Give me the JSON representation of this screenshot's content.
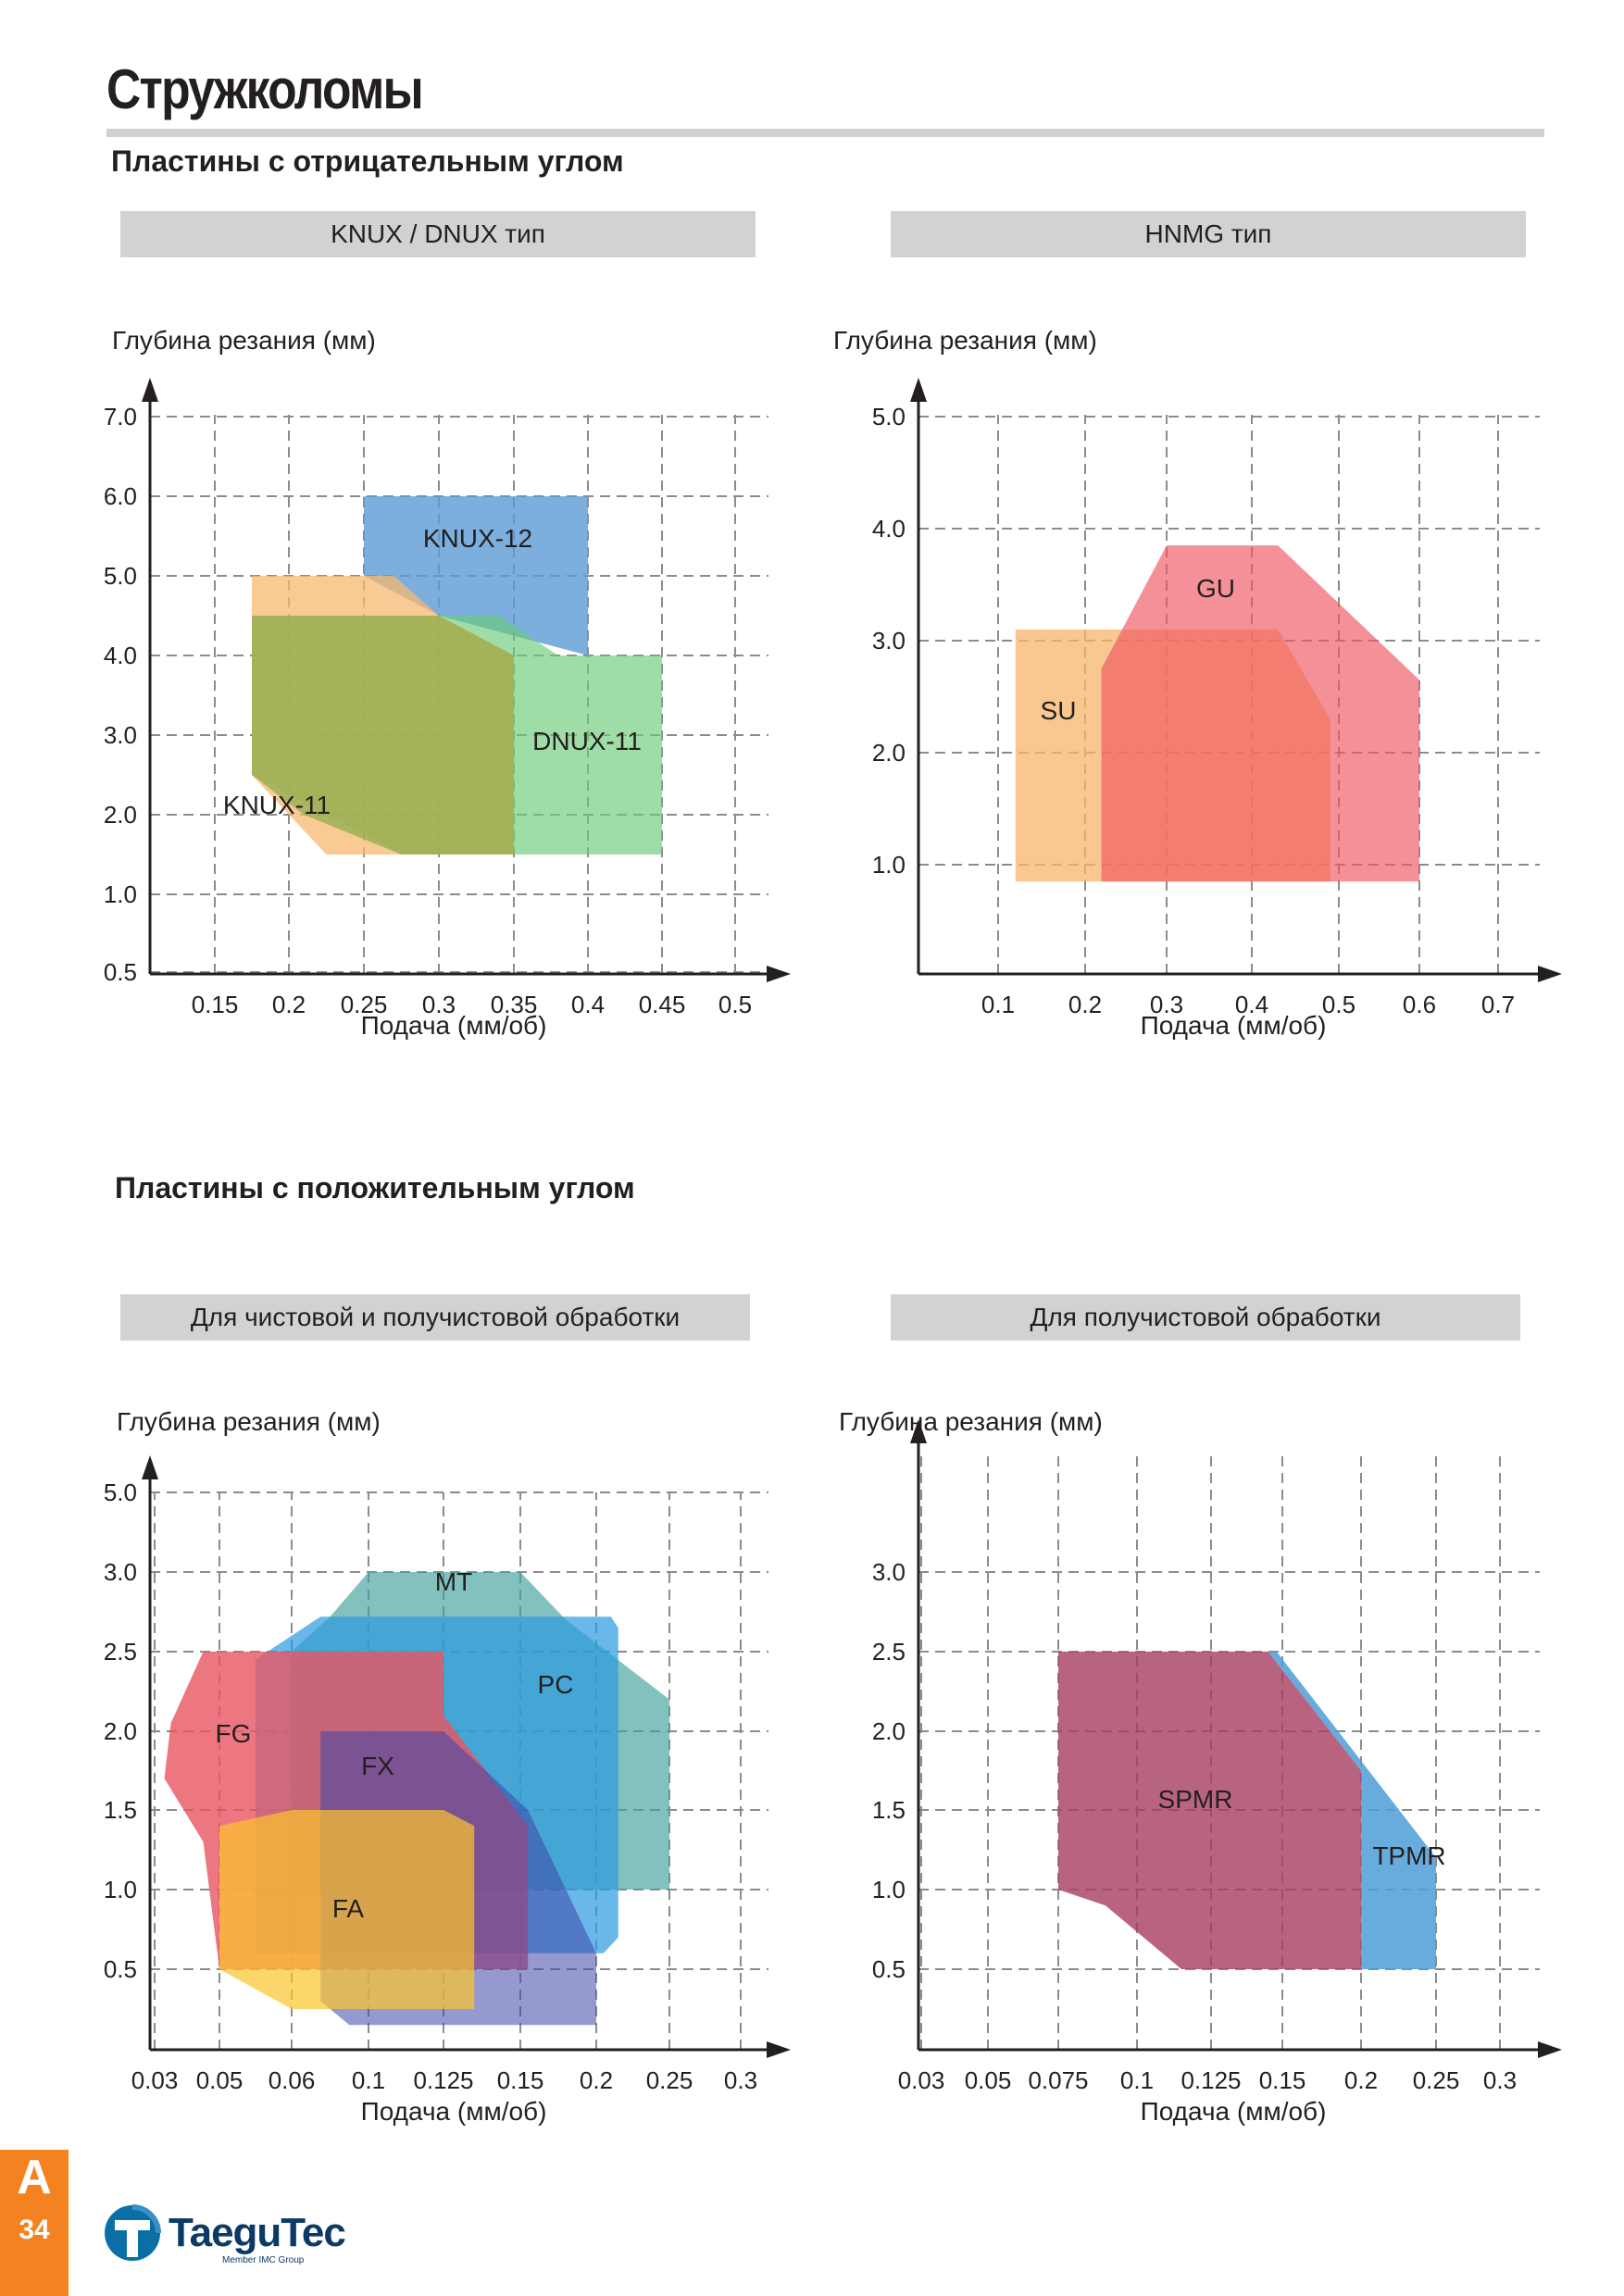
{
  "page": {
    "title": "Стружколомы",
    "section_negative": "Пластины с отрицательным углом",
    "section_positive": "Пластины с положительным углом",
    "section_letter": "A",
    "page_number": "34",
    "brand": "TaeguTec",
    "brand_tagline": "Member IMC Group",
    "accent_color": "#f58220"
  },
  "chart_data": [
    {
      "id": "knux",
      "type": "area",
      "title": "KNUX / DNUX тип",
      "xlabel": "Подача (мм/об)",
      "ylabel": "Глубина резания (мм)",
      "x_ticks": [
        "0.15",
        "0.2",
        "0.25",
        "0.3",
        "0.35",
        "0.4",
        "0.45",
        "0.5"
      ],
      "y_ticks": [
        "0.5",
        "1.0",
        "2.0",
        "3.0",
        "4.0",
        "5.0",
        "6.0",
        "7.0"
      ],
      "grid": true,
      "series": [
        {
          "name": "KNUX-12",
          "color": "#5b9bd5",
          "opacity": 0.8,
          "points": [
            [
              0.25,
              5.0
            ],
            [
              0.25,
              6.0
            ],
            [
              0.4,
              6.0
            ],
            [
              0.4,
              4.0
            ],
            [
              0.3,
              4.5
            ]
          ]
        },
        {
          "name": "DNUX-11",
          "color": "#6ccb7a",
          "opacity": 0.65,
          "points": [
            [
              0.175,
              4.5
            ],
            [
              0.34,
              4.5
            ],
            [
              0.38,
              4.0
            ],
            [
              0.45,
              4.0
            ],
            [
              0.45,
              1.5
            ],
            [
              0.275,
              1.5
            ],
            [
              0.175,
              2.5
            ]
          ]
        },
        {
          "name": "KNUX-11",
          "color": "#f7b870",
          "opacity": 0.75,
          "points": [
            [
              0.175,
              5.0
            ],
            [
              0.27,
              5.0
            ],
            [
              0.3,
              4.5
            ],
            [
              0.35,
              4.0
            ],
            [
              0.35,
              1.5
            ],
            [
              0.225,
              1.5
            ],
            [
              0.175,
              2.5
            ]
          ]
        },
        {
          "name": "",
          "color": "#8aac4a",
          "opacity": 0.7,
          "points": [
            [
              0.175,
              4.5
            ],
            [
              0.3,
              4.5
            ],
            [
              0.35,
              4.0
            ],
            [
              0.35,
              1.5
            ],
            [
              0.275,
              1.5
            ],
            [
              0.21,
              2.0
            ],
            [
              0.175,
              2.5
            ]
          ]
        }
      ]
    },
    {
      "id": "hnmg",
      "type": "area",
      "title": "HNMG тип",
      "xlabel": "Подача (мм/об)",
      "ylabel": "Глубина резания (мм)",
      "x_ticks": [
        "0.1",
        "0.2",
        "0.3",
        "0.4",
        "0.5",
        "0.6",
        "0.7"
      ],
      "y_ticks": [
        "1.0",
        "2.0",
        "3.0",
        "4.0",
        "5.0"
      ],
      "grid": true,
      "series": [
        {
          "name": "SU",
          "color": "#f6b56b",
          "opacity": 0.75,
          "points": [
            [
              0.12,
              0.85
            ],
            [
              0.12,
              3.1
            ],
            [
              0.43,
              3.1
            ],
            [
              0.49,
              2.3
            ],
            [
              0.49,
              0.85
            ]
          ]
        },
        {
          "name": "GU",
          "color": "#ee5560",
          "opacity": 0.65,
          "points": [
            [
              0.22,
              0.85
            ],
            [
              0.22,
              2.75
            ],
            [
              0.3,
              3.85
            ],
            [
              0.43,
              3.85
            ],
            [
              0.6,
              2.65
            ],
            [
              0.6,
              0.85
            ]
          ]
        }
      ]
    },
    {
      "id": "finishing",
      "type": "area",
      "title": "Для чистовой и получистовой обработки",
      "xlabel": "Подача (мм/об)",
      "ylabel": "Глубина резания (мм)",
      "x_ticks": [
        "0.03",
        "0.05",
        "0.06",
        "0.1",
        "0.125",
        "0.15",
        "0.2",
        "0.25",
        "0.3"
      ],
      "y_ticks": [
        "0.5",
        "1.0",
        "1.5",
        "2.0",
        "2.5",
        "3.0",
        "5.0"
      ],
      "grid": true,
      "series": [
        {
          "name": "MT",
          "color": "#3fa09b",
          "opacity": 0.65,
          "points": [
            [
              0.06,
              1.0
            ],
            [
              0.06,
              2.5
            ],
            [
              0.08,
              2.72
            ],
            [
              0.1,
              3.0
            ],
            [
              0.15,
              3.0
            ],
            [
              0.18,
              2.7
            ],
            [
              0.25,
              2.2
            ],
            [
              0.25,
              1.0
            ]
          ]
        },
        {
          "name": "PC",
          "color": "#2b9ae0",
          "opacity": 0.7,
          "points": [
            [
              0.055,
              0.6
            ],
            [
              0.055,
              2.45
            ],
            [
              0.075,
              2.72
            ],
            [
              0.21,
              2.72
            ],
            [
              0.215,
              2.65
            ],
            [
              0.215,
              0.7
            ],
            [
              0.205,
              0.6
            ]
          ]
        },
        {
          "name": "FG",
          "color": "#e95561",
          "opacity": 0.8,
          "points": [
            [
              0.045,
              2.5
            ],
            [
              0.125,
              2.5
            ],
            [
              0.125,
              2.1
            ],
            [
              0.155,
              1.4
            ],
            [
              0.155,
              0.5
            ],
            [
              0.05,
              0.5
            ],
            [
              0.045,
              1.3
            ],
            [
              0.033,
              1.7
            ],
            [
              0.035,
              2.05
            ]
          ]
        },
        {
          "name": "FX",
          "color": "#3e46a8",
          "opacity": 0.55,
          "points": [
            [
              0.075,
              2.0
            ],
            [
              0.125,
              2.0
            ],
            [
              0.155,
              1.5
            ],
            [
              0.2,
              0.6
            ],
            [
              0.2,
              0.15
            ],
            [
              0.09,
              0.15
            ],
            [
              0.075,
              0.3
            ]
          ]
        },
        {
          "name": "FA",
          "color": "#fcc42c",
          "opacity": 0.7,
          "points": [
            [
              0.05,
              1.4
            ],
            [
              0.06,
              1.5
            ],
            [
              0.125,
              1.5
            ],
            [
              0.135,
              1.4
            ],
            [
              0.135,
              0.25
            ],
            [
              0.06,
              0.25
            ],
            [
              0.05,
              0.5
            ]
          ]
        }
      ]
    },
    {
      "id": "semifinishing",
      "type": "area",
      "title": "Для получистовой обработки",
      "xlabel": "Подача (мм/об)",
      "ylabel": "Глубина резания (мм)",
      "x_ticks": [
        "0.03",
        "0.05",
        "0.075",
        "0.1",
        "0.125",
        "0.15",
        "0.2",
        "0.25",
        "0.3"
      ],
      "y_ticks": [
        "0.5",
        "1.0",
        "1.5",
        "2.0",
        "2.5",
        "3.0"
      ],
      "grid": true,
      "series": [
        {
          "name": "TPMR",
          "color": "#4d9ed8",
          "opacity": 0.85,
          "points": [
            [
              0.148,
              2.5
            ],
            [
              0.25,
              1.2
            ],
            [
              0.25,
              0.5
            ],
            [
              0.2,
              0.5
            ],
            [
              0.2,
              1.75
            ],
            [
              0.145,
              2.5
            ]
          ]
        },
        {
          "name": "SPMR",
          "color": "#a63d61",
          "opacity": 0.8,
          "points": [
            [
              0.075,
              2.5
            ],
            [
              0.145,
              2.5
            ],
            [
              0.2,
              1.75
            ],
            [
              0.2,
              0.5
            ],
            [
              0.115,
              0.5
            ],
            [
              0.09,
              0.9
            ],
            [
              0.075,
              1.0
            ]
          ]
        }
      ]
    }
  ]
}
